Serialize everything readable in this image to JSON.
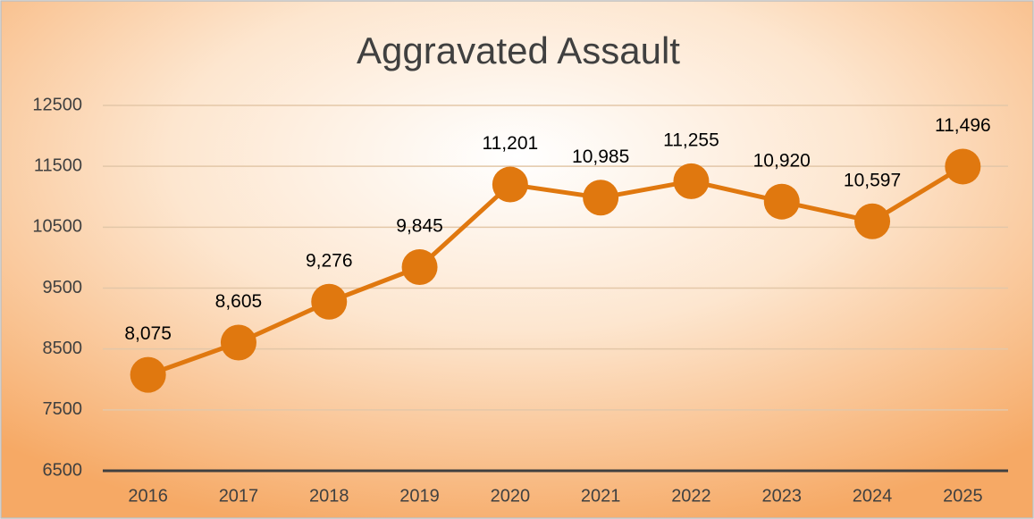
{
  "chart_data": {
    "type": "line",
    "title": "Aggravated Assault",
    "categories": [
      "2016",
      "2017",
      "2018",
      "2019",
      "2020",
      "2021",
      "2022",
      "2023",
      "2024",
      "2025"
    ],
    "values": [
      8075,
      8605,
      9276,
      9845,
      11201,
      10985,
      11255,
      10920,
      10597,
      11496
    ],
    "value_labels": [
      "8,075",
      "8,605",
      "9,276",
      "9,845",
      "11,201",
      "10,985",
      "11,255",
      "10,920",
      "10,597",
      "11,496"
    ],
    "color": "#e0780f",
    "ylim": [
      6500,
      12500
    ],
    "yticks": [
      6500,
      7500,
      8500,
      9500,
      10500,
      11500,
      12500
    ],
    "grid": true
  }
}
